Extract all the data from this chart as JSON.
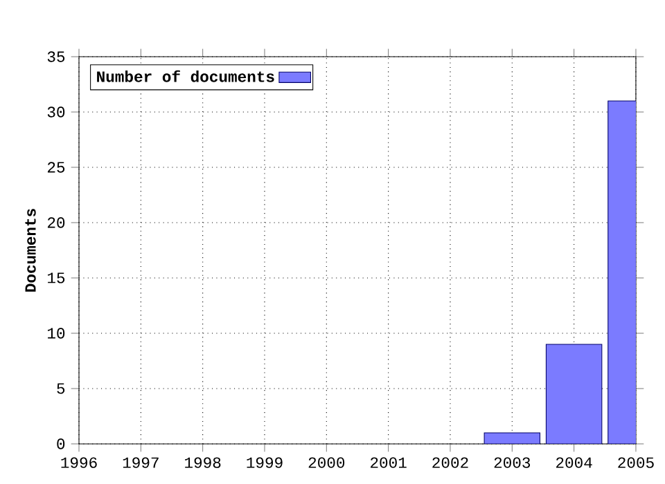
{
  "chart_data": {
    "type": "bar",
    "ylabel": "Documents",
    "x": [
      2003,
      2004,
      2005
    ],
    "series": [
      {
        "name": "Number of documents",
        "color": "#7b7bff",
        "values": [
          1,
          9,
          31
        ]
      }
    ],
    "xlim": [
      1996,
      2005
    ],
    "xticks": [
      1996,
      1997,
      1998,
      1999,
      2000,
      2001,
      2002,
      2003,
      2004,
      2005
    ],
    "ylim": [
      0,
      35
    ],
    "yticks": [
      0,
      5,
      10,
      15,
      20,
      25,
      30,
      35
    ],
    "grid": true,
    "legend": "top left"
  }
}
